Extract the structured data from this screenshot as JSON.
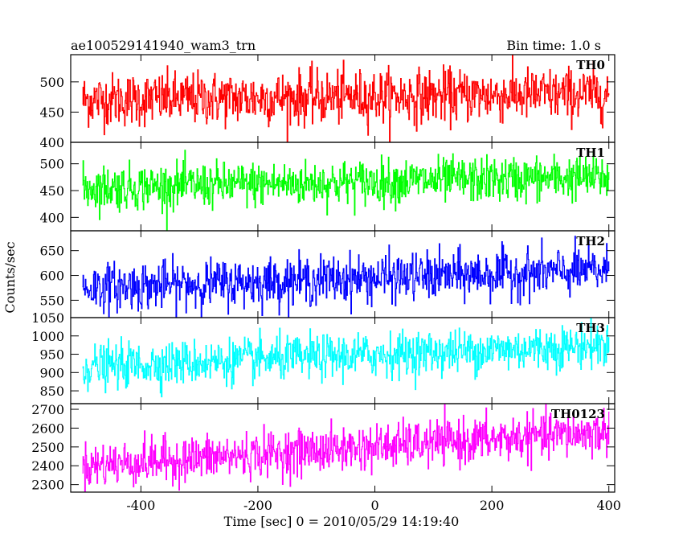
{
  "chart_data": {
    "type": "line",
    "title": "ae100529141940_wam3_trn",
    "subtitle": "Bin time: 1.0 s",
    "xlabel": "Time [sec] 0 = 2010/05/29 14:19:40",
    "ylabel": "Counts/sec",
    "xlim": [
      -520,
      410
    ],
    "xticks": [
      -400,
      -200,
      0,
      200,
      400
    ],
    "x_range": [
      -500,
      400
    ],
    "grid": false,
    "panels": [
      {
        "name": "TH0",
        "color": "#ff0000",
        "ylim": [
          400,
          545
        ],
        "yticks": [
          400,
          450,
          500
        ],
        "trend_start": 470,
        "trend_end": 480,
        "noise": 22
      },
      {
        "name": "TH1",
        "color": "#00ff00",
        "ylim": [
          375,
          540
        ],
        "yticks": [
          400,
          450,
          500
        ],
        "trend_start": 455,
        "trend_end": 475,
        "noise": 21
      },
      {
        "name": "TH2",
        "color": "#0000ff",
        "ylim": [
          515,
          690
        ],
        "yticks": [
          550,
          600,
          650
        ],
        "trend_start": 575,
        "trend_end": 610,
        "noise": 24
      },
      {
        "name": "TH3",
        "color": "#00ffff",
        "ylim": [
          815,
          1050
        ],
        "yticks": [
          850,
          900,
          950,
          1000,
          1050
        ],
        "trend_start": 915,
        "trend_end": 975,
        "noise": 30
      },
      {
        "name": "TH0123",
        "color": "#ff00ff",
        "ylim": [
          2260,
          2730
        ],
        "yticks": [
          2300,
          2400,
          2500,
          2600,
          2700
        ],
        "trend_start": 2400,
        "trend_end": 2580,
        "noise": 60
      }
    ]
  }
}
